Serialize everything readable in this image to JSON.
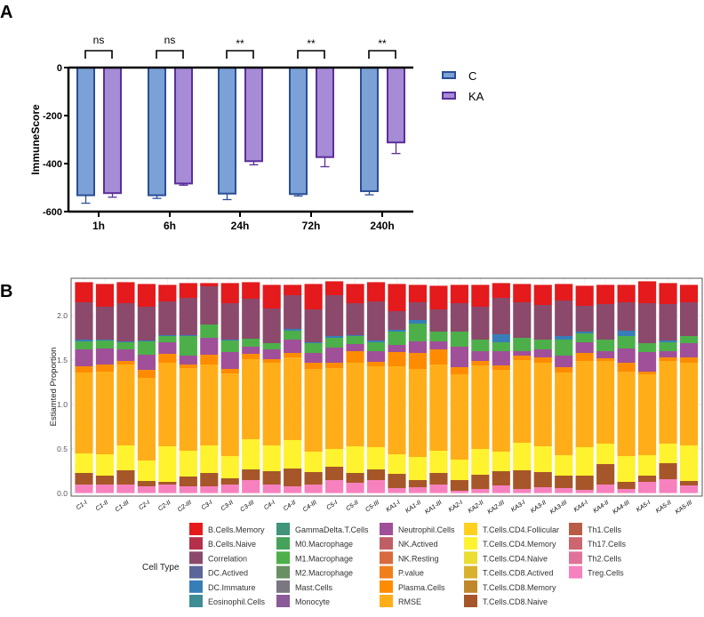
{
  "chart_data": [
    {
      "panel_label": "A",
      "type": "bar",
      "title": "",
      "xlabel": "",
      "ylabel": "ImmuneScore",
      "ylim": [
        -600,
        0
      ],
      "yticks": [
        "0",
        "-200",
        "-400",
        "-600"
      ],
      "ytick_values": [
        0,
        -200,
        -400,
        -600
      ],
      "categories": [
        "1h",
        "6h",
        "24h",
        "72h",
        "240h"
      ],
      "series": [
        {
          "name": "C",
          "values": [
            -532,
            -532,
            -525,
            -527,
            -515
          ],
          "errors": [
            33,
            13,
            25,
            8,
            15
          ],
          "fill": "#7ba1d6",
          "stroke": "#2a4f96"
        },
        {
          "name": "KA",
          "values": [
            -523,
            -483,
            -390,
            -373,
            -312
          ],
          "errors": [
            17,
            7,
            15,
            40,
            46
          ],
          "fill": "#a68bd6",
          "stroke": "#5a2f9a"
        }
      ],
      "significance": [
        "ns",
        "ns",
        "**",
        "**",
        "**"
      ],
      "legend_position": "right"
    },
    {
      "panel_label": "B",
      "type": "bar",
      "stacked": true,
      "ylabel": "Estiamted Proportion",
      "ylim": [
        0,
        2.4
      ],
      "yticks": [
        "0.0",
        "0.5",
        "1.0",
        "1.5",
        "2.0"
      ],
      "ytick_values": [
        0,
        0.5,
        1.0,
        1.5,
        2.0
      ],
      "grid": true,
      "categories": [
        "C1-I",
        "C1-II",
        "C1-III",
        "C2-I",
        "C2-II",
        "C2-III",
        "C3-I",
        "C3-II",
        "C3-III",
        "C4-I",
        "C4-II",
        "C4-III",
        "C5-I",
        "C5-II",
        "C5-III",
        "KA1-I",
        "KA1-II",
        "KA1-III",
        "KA2-I",
        "KA2-II",
        "KA2-III",
        "KA3-I",
        "KA3-II",
        "KA3-III",
        "KA4-I",
        "KA4-II",
        "KA4-III",
        "KA5-I",
        "KA5-II",
        "KA5-III"
      ],
      "stack_order": [
        "Treg.Cells",
        "T.Cells.CD8.Naive",
        "T.Cells.CD4.Memory",
        "RMSE",
        "Plasma.Cells",
        "Neutrophil.Cells",
        "M1.Macrophage",
        "DC.Immature",
        "Correlation",
        "B.Cells.Memory"
      ],
      "values": [
        [
          0.1,
          0.13,
          0.22,
          0.91,
          0.07,
          0.19,
          0.09,
          0.02,
          0.42,
          0.23
        ],
        [
          0.1,
          0.1,
          0.24,
          0.93,
          0.08,
          0.18,
          0.09,
          0.01,
          0.37,
          0.26
        ],
        [
          0.1,
          0.16,
          0.28,
          0.91,
          0.04,
          0.13,
          0.08,
          0.01,
          0.43,
          0.24
        ],
        [
          0.08,
          0.06,
          0.23,
          0.93,
          0.09,
          0.17,
          0.15,
          0.01,
          0.38,
          0.26
        ],
        [
          0.1,
          0.03,
          0.4,
          0.94,
          0.1,
          0.13,
          0.07,
          0.01,
          0.38,
          0.19
        ],
        [
          0.08,
          0.11,
          0.29,
          0.93,
          0.04,
          0.1,
          0.22,
          0.01,
          0.42,
          0.17
        ],
        [
          0.08,
          0.15,
          0.31,
          0.91,
          0.11,
          0.19,
          0.15,
          0.0,
          0.43,
          0.04
        ],
        [
          0.1,
          0.07,
          0.25,
          0.93,
          0.05,
          0.19,
          0.13,
          0.01,
          0.41,
          0.23
        ],
        [
          0.15,
          0.12,
          0.34,
          0.9,
          0.06,
          0.08,
          0.09,
          0.0,
          0.45,
          0.19
        ],
        [
          0.1,
          0.15,
          0.29,
          0.93,
          0.04,
          0.11,
          0.07,
          0.0,
          0.39,
          0.27
        ],
        [
          0.08,
          0.2,
          0.32,
          0.93,
          0.05,
          0.15,
          0.1,
          0.02,
          0.38,
          0.12
        ],
        [
          0.1,
          0.14,
          0.23,
          0.93,
          0.07,
          0.11,
          0.11,
          0.01,
          0.37,
          0.29
        ],
        [
          0.15,
          0.15,
          0.2,
          0.91,
          0.06,
          0.17,
          0.11,
          0.02,
          0.46,
          0.16
        ],
        [
          0.12,
          0.11,
          0.3,
          0.94,
          0.13,
          0.08,
          0.09,
          0.01,
          0.36,
          0.22
        ],
        [
          0.15,
          0.12,
          0.25,
          0.91,
          0.05,
          0.12,
          0.1,
          0.02,
          0.44,
          0.22
        ],
        [
          0.06,
          0.16,
          0.22,
          0.99,
          0.16,
          0.08,
          0.15,
          0.02,
          0.21,
          0.31
        ],
        [
          0.07,
          0.08,
          0.26,
          0.99,
          0.18,
          0.13,
          0.2,
          0.04,
          0.2,
          0.2
        ],
        [
          0.1,
          0.13,
          0.25,
          0.97,
          0.17,
          0.09,
          0.11,
          0.0,
          0.25,
          0.27
        ],
        [
          0.03,
          0.12,
          0.23,
          0.96,
          0.08,
          0.23,
          0.17,
          0.0,
          0.32,
          0.21
        ],
        [
          0.05,
          0.16,
          0.29,
          0.94,
          0.05,
          0.11,
          0.13,
          0.0,
          0.37,
          0.25
        ],
        [
          0.09,
          0.16,
          0.22,
          0.92,
          0.05,
          0.16,
          0.1,
          0.09,
          0.41,
          0.17
        ],
        [
          0.05,
          0.21,
          0.31,
          0.93,
          0.05,
          0.05,
          0.15,
          0.0,
          0.4,
          0.21
        ],
        [
          0.07,
          0.17,
          0.29,
          0.94,
          0.06,
          0.09,
          0.11,
          0.0,
          0.39,
          0.23
        ],
        [
          0.06,
          0.14,
          0.23,
          0.93,
          0.06,
          0.13,
          0.18,
          0.04,
          0.4,
          0.19
        ],
        [
          0.04,
          0.16,
          0.32,
          0.97,
          0.09,
          0.12,
          0.1,
          0.02,
          0.29,
          0.23
        ],
        [
          0.1,
          0.23,
          0.23,
          0.93,
          0.03,
          0.08,
          0.13,
          0.0,
          0.4,
          0.22
        ],
        [
          0.05,
          0.08,
          0.29,
          0.95,
          0.1,
          0.16,
          0.14,
          0.06,
          0.32,
          0.2
        ],
        [
          0.13,
          0.07,
          0.23,
          0.91,
          0.03,
          0.22,
          0.1,
          0.0,
          0.45,
          0.25
        ],
        [
          0.16,
          0.18,
          0.22,
          0.93,
          0.04,
          0.07,
          0.1,
          0.02,
          0.41,
          0.24
        ],
        [
          0.09,
          0.05,
          0.4,
          0.93,
          0.06,
          0.16,
          0.08,
          0.0,
          0.38,
          0.2
        ]
      ],
      "legend_title": "Cell Type",
      "legend_position": "bottom",
      "legend": [
        {
          "name": "B.Cells.Memory",
          "color": "#e41a1c"
        },
        {
          "name": "B.Cells.Naive",
          "color": "#b5304a"
        },
        {
          "name": "Correlation",
          "color": "#8b4a6b"
        },
        {
          "name": "DC.Actived",
          "color": "#5a6698"
        },
        {
          "name": "DC.Immature",
          "color": "#377eb8"
        },
        {
          "name": "Eosinophil.Cells",
          "color": "#3e8c94"
        },
        {
          "name": "GammaDelta.T.Cells",
          "color": "#3f9479"
        },
        {
          "name": "M0.Macrophage",
          "color": "#44a25a"
        },
        {
          "name": "M1.Macrophage",
          "color": "#4daf4a"
        },
        {
          "name": "M2.Macrophage",
          "color": "#6a8f64"
        },
        {
          "name": "Mast.Cells",
          "color": "#7a7780"
        },
        {
          "name": "Monocyte",
          "color": "#8b5a99"
        },
        {
          "name": "Neutrophil.Cells",
          "color": "#a04f99"
        },
        {
          "name": "NK.Actived",
          "color": "#c05e65"
        },
        {
          "name": "NK.Resting",
          "color": "#d86a3e"
        },
        {
          "name": "P.value",
          "color": "#f07f1a"
        },
        {
          "name": "Plasma.Cells",
          "color": "#ff8c00"
        },
        {
          "name": "RMSE",
          "color": "#ffae19"
        },
        {
          "name": "T.Cells.CD4.Follicular",
          "color": "#ffd11f"
        },
        {
          "name": "T.Cells.CD4.Memory",
          "color": "#fff22e"
        },
        {
          "name": "T.Cells.CD4.Naive",
          "color": "#ebde33"
        },
        {
          "name": "T.Cells.CD8.Actived",
          "color": "#d9b22d"
        },
        {
          "name": "T.Cells.CD8.Memory",
          "color": "#c08828"
        },
        {
          "name": "T.Cells.CD8.Naive",
          "color": "#a65628"
        },
        {
          "name": "Th1.Cells",
          "color": "#b85c47"
        },
        {
          "name": "Th17.Cells",
          "color": "#cc6670"
        },
        {
          "name": "Th2.Cells",
          "color": "#e0729a"
        },
        {
          "name": "Treg.Cells",
          "color": "#f781bf"
        }
      ]
    }
  ]
}
